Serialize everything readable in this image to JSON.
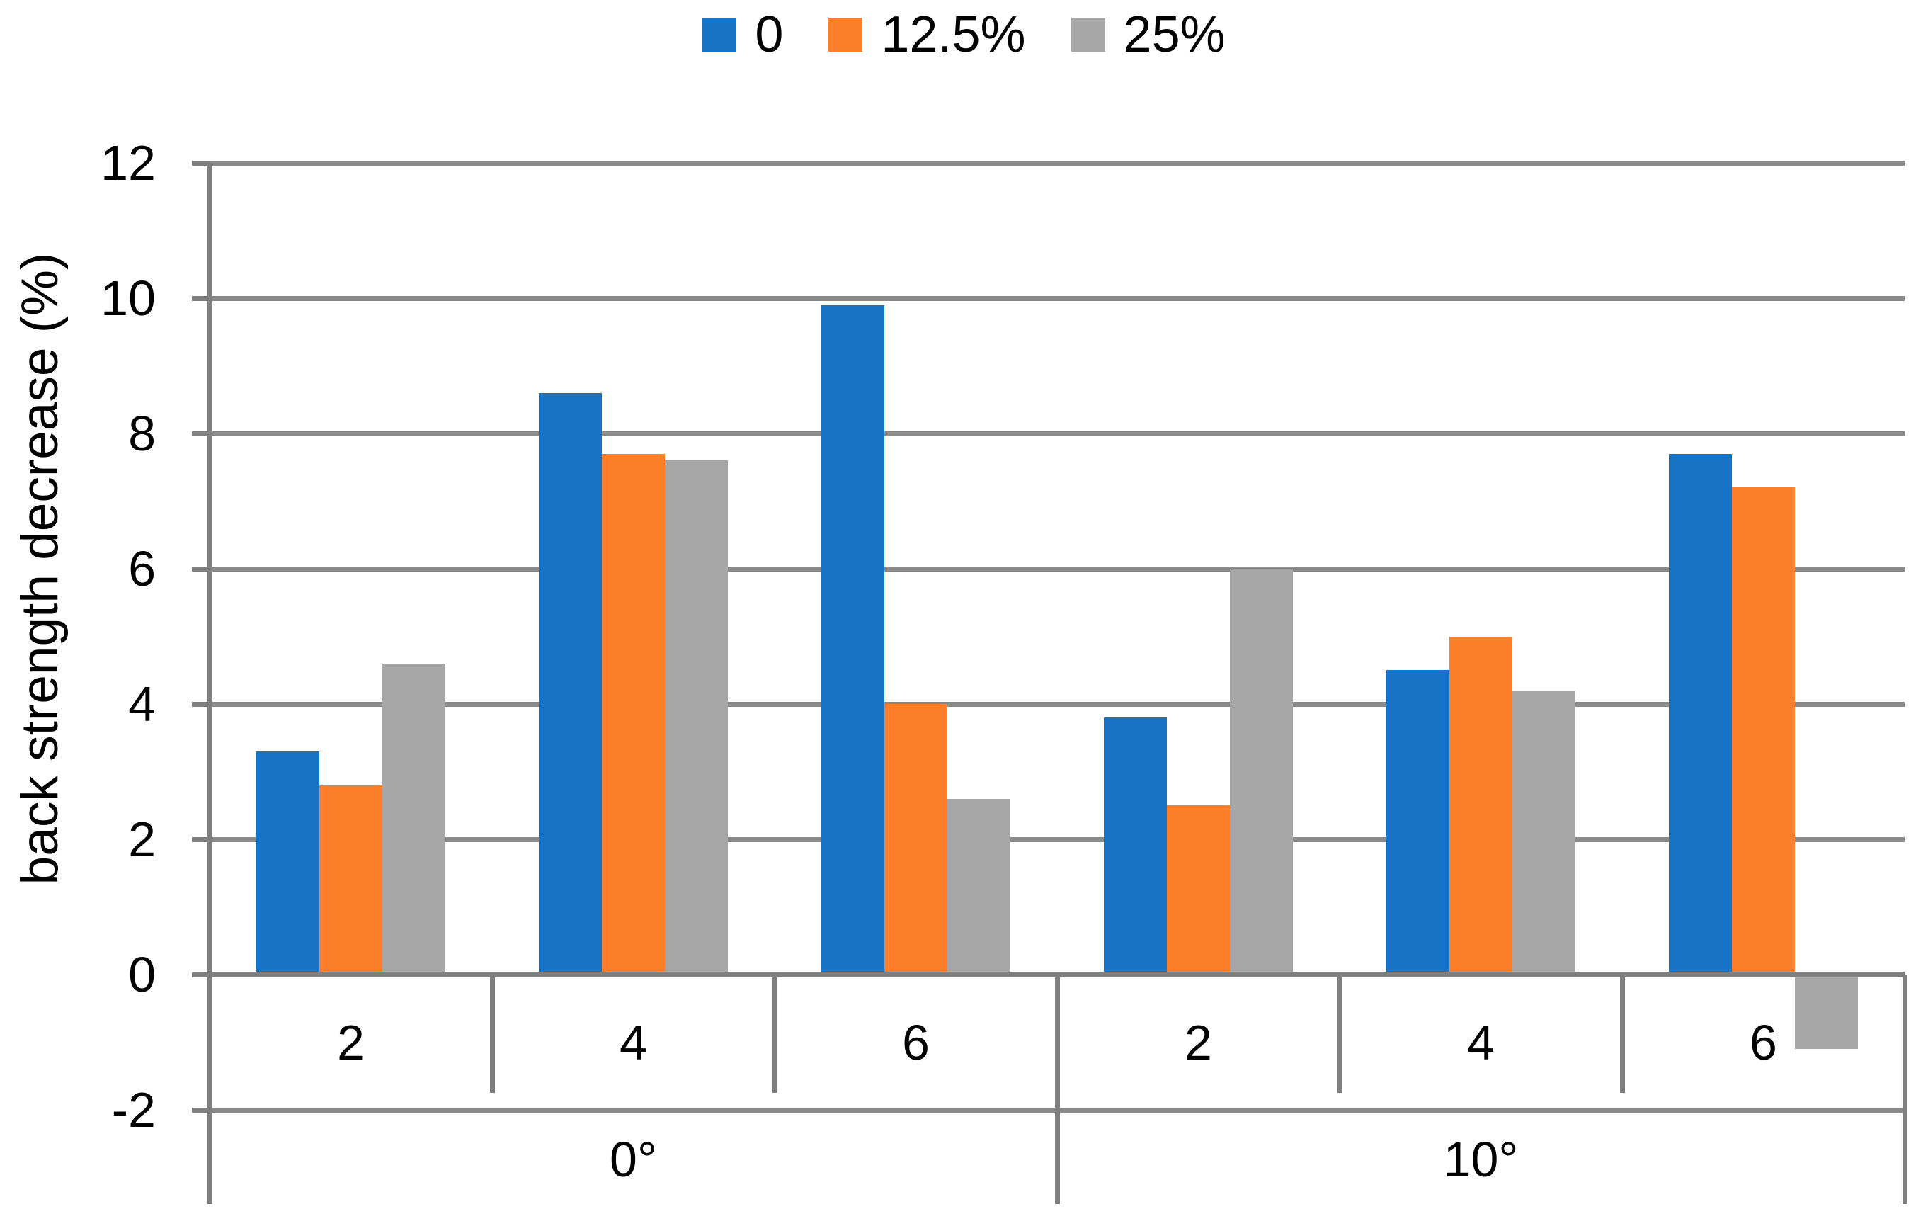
{
  "chart_data": {
    "type": "bar",
    "title": "",
    "ylabel": "back strength decrease (%)",
    "ylim": [
      -2,
      12
    ],
    "ytick_step": 2,
    "grid": true,
    "legend_position": "top",
    "group_labels": [
      "0°",
      "10°"
    ],
    "categories": [
      "2",
      "4",
      "6",
      "2",
      "4",
      "6"
    ],
    "series": [
      {
        "name": "0",
        "color": "#1673C6",
        "values": [
          3.3,
          8.6,
          9.9,
          3.8,
          4.5,
          7.7
        ]
      },
      {
        "name": "12.5%",
        "color": "#FD7E2B",
        "values": [
          2.8,
          7.7,
          4.0,
          2.5,
          5.0,
          7.2
        ]
      },
      {
        "name": "25%",
        "color": "#A6A6A6",
        "values": [
          4.6,
          7.6,
          2.6,
          6.0,
          4.2,
          -1.1
        ]
      }
    ],
    "axis_color": "#7F7F7F",
    "gridline_color": "#8A8A8A",
    "text_color": "#000000"
  }
}
